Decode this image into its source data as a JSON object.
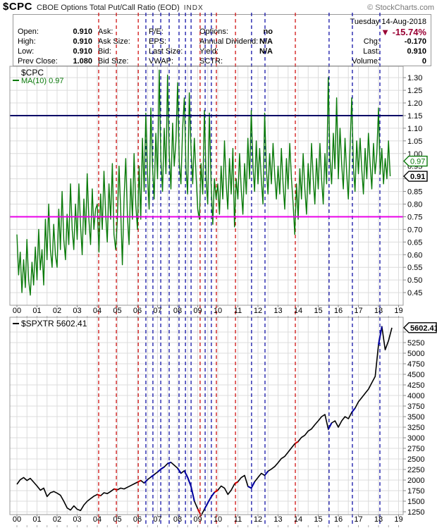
{
  "header": {
    "symbol": "$CPC",
    "title": "CBOE Options Total Put/Call Ratio (EOD)",
    "exchange": "INDX",
    "credit": "© StockCharts.com"
  },
  "quote": {
    "date": "Tuesday 14-Aug-2018",
    "pct_change": "▼ -15.74%",
    "pct_color": "#990033",
    "columns": [
      {
        "rows": [
          {
            "label": "Open:",
            "value": "0.910"
          },
          {
            "label": "High:",
            "value": "0.910"
          },
          {
            "label": "Low:",
            "value": "0.910"
          },
          {
            "label": "Prev Close:",
            "value": "1.080"
          }
        ]
      },
      {
        "rows": [
          {
            "label": "Ask:",
            "value": ""
          },
          {
            "label": "Ask Size:",
            "value": ""
          },
          {
            "label": "Bid:",
            "value": ""
          },
          {
            "label": "Bid Size:",
            "value": ""
          }
        ]
      },
      {
        "rows": [
          {
            "label": "P/E:",
            "value": ""
          },
          {
            "label": "EPS:",
            "value": ""
          },
          {
            "label": "Last Size:",
            "value": ""
          },
          {
            "label": "VWAP:",
            "value": ""
          }
        ]
      },
      {
        "rows": [
          {
            "label": "Options:",
            "value": "no"
          },
          {
            "label": "Annual Dividend:",
            "value": "N/A"
          },
          {
            "label": "Yield:",
            "value": "N/A"
          },
          {
            "label": "SCTR:",
            "value": ""
          }
        ]
      }
    ],
    "right_rows": [
      {
        "label": "Chg:",
        "value": "-0.170"
      },
      {
        "label": "Last:",
        "value": "0.910"
      },
      {
        "label": "Volume:",
        "value": "0"
      }
    ]
  },
  "colors": {
    "cpc_line": "#0a7a0a",
    "spx_line": "#000000",
    "upper_threshold": "#000066",
    "lower_threshold": "#e800e8",
    "signal_red": "#cc0000",
    "signal_blue": "#0000a0",
    "grid": "#dcdcdc",
    "plot_border": "#999999"
  },
  "chart_data": [
    {
      "type": "line",
      "title": "$CPC",
      "legend_symbol": "$CPC",
      "legend_ma": "MA(10) 0.97",
      "ma_tag": "0.97",
      "last_tag": "0.91",
      "ylim": [
        0.4,
        1.345
      ],
      "x_start": 2000.0,
      "x_step": 0.083333,
      "xticks": [
        "00",
        "01",
        "02",
        "03",
        "04",
        "05",
        "06",
        "07",
        "08",
        "09",
        "10",
        "11",
        "12",
        "13",
        "14",
        "15",
        "16",
        "17",
        "18",
        "19"
      ],
      "ytick_values": [
        1.3,
        1.25,
        1.2,
        1.15,
        1.1,
        1.05,
        1.0,
        0.95,
        0.9,
        0.85,
        0.8,
        0.75,
        0.7,
        0.65,
        0.6,
        0.55,
        0.5,
        0.45
      ],
      "ytick_labels": [
        "1.30",
        "1.25",
        "1.20",
        "1.15",
        "1.10",
        "1.05",
        "1.00",
        "0.95",
        "",
        "0.85",
        "0.80",
        "0.75",
        "0.70",
        "0.65",
        "0.60",
        "0.55",
        "0.50",
        "0.45"
      ],
      "thresholds": {
        "upper": 1.15,
        "lower": 0.75
      },
      "signals": [
        {
          "year": 2004.07,
          "color": "red"
        },
        {
          "year": 2004.95,
          "color": "red"
        },
        {
          "year": 2006.04,
          "color": "red"
        },
        {
          "year": 2009.12,
          "color": "red"
        },
        {
          "year": 2009.93,
          "color": "red"
        },
        {
          "year": 2010.88,
          "color": "red"
        },
        {
          "year": 2013.86,
          "color": "red"
        },
        {
          "year": 2006.42,
          "color": "blue"
        },
        {
          "year": 2006.77,
          "color": "blue"
        },
        {
          "year": 2007.16,
          "color": "blue"
        },
        {
          "year": 2007.58,
          "color": "blue"
        },
        {
          "year": 2008.07,
          "color": "blue"
        },
        {
          "year": 2008.39,
          "color": "blue"
        },
        {
          "year": 2008.67,
          "color": "blue"
        },
        {
          "year": 2009.37,
          "color": "blue"
        },
        {
          "year": 2009.68,
          "color": "blue"
        },
        {
          "year": 2011.68,
          "color": "blue"
        },
        {
          "year": 2012.35,
          "color": "blue"
        },
        {
          "year": 2015.54,
          "color": "blue"
        },
        {
          "year": 2016.7,
          "color": "blue"
        },
        {
          "year": 2018.07,
          "color": "blue"
        }
      ],
      "values": [
        0.68,
        0.52,
        0.61,
        0.45,
        0.58,
        0.47,
        0.66,
        0.5,
        0.44,
        0.57,
        0.48,
        0.63,
        0.5,
        0.7,
        0.54,
        0.62,
        0.48,
        0.74,
        0.58,
        0.8,
        0.62,
        0.55,
        0.72,
        0.6,
        0.55,
        0.78,
        0.62,
        0.85,
        0.66,
        0.58,
        0.76,
        0.64,
        0.88,
        0.7,
        0.62,
        0.8,
        0.66,
        0.88,
        0.72,
        0.6,
        0.82,
        0.68,
        0.92,
        0.74,
        0.64,
        0.86,
        0.7,
        0.78,
        0.8,
        0.61,
        0.84,
        0.7,
        0.93,
        0.76,
        0.65,
        0.88,
        0.74,
        0.96,
        0.68,
        0.62,
        0.74,
        0.95,
        0.78,
        0.56,
        0.82,
        0.98,
        0.76,
        0.64,
        0.9,
        0.74,
        1.0,
        0.8,
        0.7,
        0.95,
        0.74,
        1.06,
        0.85,
        1.16,
        0.92,
        0.78,
        1.18,
        0.95,
        0.82,
        1.08,
        0.9,
        1.33,
        0.98,
        0.85,
        1.1,
        0.92,
        1.31,
        1.0,
        0.86,
        1.12,
        0.95,
        1.05,
        1.28,
        0.96,
        0.88,
        1.1,
        1.22,
        0.94,
        0.84,
        1.24,
        1.02,
        0.88,
        1.06,
        0.92,
        0.78,
        0.74,
        0.96,
        0.84,
        1.17,
        0.9,
        0.8,
        1.16,
        0.88,
        0.72,
        0.9,
        0.82,
        0.88,
        0.76,
        0.95,
        0.82,
        1.05,
        0.88,
        0.78,
        0.98,
        0.84,
        1.02,
        0.71,
        0.9,
        0.82,
        1.0,
        0.86,
        0.76,
        0.96,
        0.84,
        1.06,
        0.9,
        1.17,
        0.95,
        0.85,
        1.05,
        0.88,
        1.02,
        0.9,
        0.8,
        1.16,
        0.94,
        0.84,
        1.0,
        0.88,
        1.04,
        0.92,
        0.82,
        0.95,
        0.84,
        1.02,
        0.88,
        0.78,
        0.98,
        0.86,
        1.04,
        0.9,
        0.8,
        0.68,
        0.88,
        0.74,
        0.94,
        0.82,
        1.0,
        0.86,
        0.76,
        0.96,
        0.84,
        1.04,
        0.9,
        0.8,
        0.98,
        0.86,
        1.04,
        0.9,
        0.8,
        1.0,
        0.88,
        1.3,
        0.98,
        0.88,
        1.08,
        0.94,
        1.22,
        0.9,
        1.1,
        0.96,
        0.86,
        1.06,
        0.92,
        0.82,
        1.02,
        1.22,
        0.95,
        0.85,
        1.05,
        0.92,
        1.06,
        0.94,
        0.84,
        1.02,
        0.9,
        1.08,
        0.96,
        0.86,
        1.04,
        0.92,
        1.0,
        1.18,
        0.92,
        1.02,
        0.88,
        0.98,
        0.9,
        1.05,
        0.91
      ]
    },
    {
      "type": "line",
      "title": "$SPXTR",
      "legend_symbol": "$SPXTR 5602.41",
      "last_tag": "5602.41",
      "ylim": [
        1183,
        5850
      ],
      "x_start": 2000.0,
      "x_step": 0.166667,
      "xticks": [
        "00",
        "01",
        "02",
        "03",
        "04",
        "05",
        "06",
        "07",
        "08",
        "09",
        "10",
        "11",
        "12",
        "13",
        "14",
        "15",
        "16",
        "17",
        "18",
        "19"
      ],
      "ytick_values": [
        5500,
        5250,
        5000,
        4750,
        4500,
        4250,
        4000,
        3750,
        3500,
        3250,
        3000,
        2750,
        2500,
        2250,
        2000,
        1750,
        1500,
        1250
      ],
      "ytick_labels": [
        "",
        "5250",
        "5000",
        "4750",
        "4500",
        "4250",
        "4000",
        "3750",
        "3500",
        "3250",
        "3000",
        "2750",
        "2500",
        "2250",
        "2000",
        "1750",
        "1500",
        "1250"
      ],
      "values": [
        1900,
        2010,
        2060,
        1990,
        2040,
        1950,
        1860,
        1760,
        1810,
        1610,
        1700,
        1730,
        1690,
        1640,
        1500,
        1340,
        1290,
        1390,
        1310,
        1280,
        1410,
        1500,
        1560,
        1620,
        1660,
        1630,
        1700,
        1680,
        1730,
        1790,
        1770,
        1810,
        1790,
        1830,
        1870,
        1910,
        1950,
        1990,
        1930,
        2010,
        2070,
        2130,
        2190,
        2260,
        2310,
        2390,
        2420,
        2350,
        2280,
        2160,
        2220,
        2060,
        1850,
        1500,
        1320,
        1160,
        1310,
        1460,
        1600,
        1710,
        1760,
        1860,
        1810,
        1660,
        1760,
        1910,
        1960,
        2060,
        2110,
        1850,
        1810,
        1960,
        2060,
        2160,
        2110,
        2210,
        2260,
        2320,
        2410,
        2510,
        2560,
        2660,
        2760,
        2860,
        2910,
        3010,
        3060,
        3160,
        3210,
        3310,
        3400,
        3500,
        3550,
        3200,
        3350,
        3400,
        3250,
        3400,
        3500,
        3450,
        3600,
        3700,
        3850,
        3950,
        4050,
        4150,
        4300,
        4450,
        5200,
        5630,
        5080,
        5300,
        5602.41
      ]
    }
  ]
}
